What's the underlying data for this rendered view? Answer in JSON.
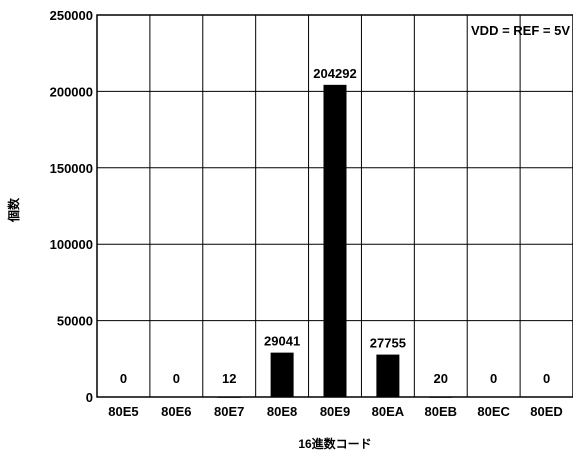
{
  "chart_data": {
    "type": "bar",
    "categories": [
      "80E5",
      "80E6",
      "80E7",
      "80E8",
      "80E9",
      "80EA",
      "80EB",
      "80EC",
      "80ED"
    ],
    "values": [
      0,
      0,
      12,
      29041,
      204292,
      27755,
      20,
      0,
      0
    ],
    "data_labels": [
      "0",
      "0",
      "12",
      "29041",
      "204292",
      "27755",
      "20",
      "0",
      "0"
    ],
    "xlabel": "16進数コード",
    "ylabel": "個数",
    "ylim": [
      0,
      250000
    ],
    "yticks": [
      0,
      50000,
      100000,
      150000,
      200000,
      250000
    ],
    "annotation": "VDD = REF = 5V",
    "grid": true,
    "bar_color": "#000000"
  }
}
